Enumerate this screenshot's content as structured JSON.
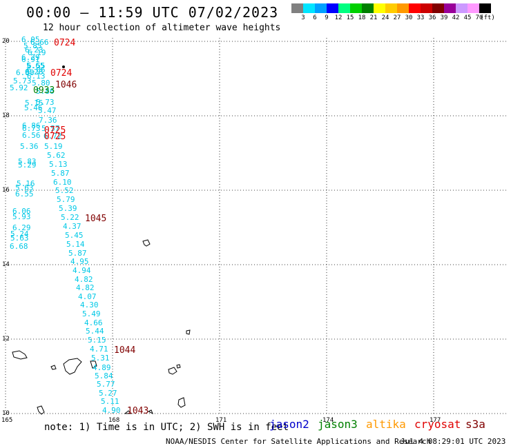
{
  "header": {
    "title": "00:00 – 11:59 UTC 07/02/2023",
    "subtitle": "12 hour collection of altimeter wave heights"
  },
  "legend": {
    "unit": "(ft)",
    "colors": [
      "#808080",
      "#00e5ff",
      "#00a0ff",
      "#0000ff",
      "#00ff80",
      "#00d000",
      "#008000",
      "#ffff00",
      "#ffcc00",
      "#ff9900",
      "#ff0000",
      "#cc0000",
      "#800000",
      "#990099",
      "#cc99ff",
      "#ff99ff",
      "#000000"
    ],
    "labels": [
      "3",
      "6",
      "9",
      "12",
      "15",
      "18",
      "21",
      "24",
      "27",
      "30",
      "33",
      "36",
      "39",
      "42",
      "45",
      "70"
    ]
  },
  "axes": {
    "x_ticks": [
      "165",
      "168",
      "171",
      "174",
      "177"
    ],
    "y_ticks": [
      "20",
      "18",
      "16",
      "14",
      "12",
      "10"
    ]
  },
  "wave_heights": [
    {
      "v": "6.05",
      "c": "#00c8e6"
    },
    {
      "v": "6.66",
      "c": "#00c8e6"
    },
    {
      "v": "5.85",
      "c": "#00c8e6"
    },
    {
      "v": "6.23",
      "c": "#00c8e6"
    },
    {
      "v": "6.19",
      "c": "#00c8e6"
    },
    {
      "v": "6.91",
      "c": "#00c8e6"
    },
    {
      "v": "6.29",
      "c": "#00c8e6"
    },
    {
      "v": "5.65",
      "c": "#00c8e6"
    },
    {
      "v": "6.55",
      "c": "#00c8e6"
    },
    {
      "v": "6.06",
      "c": "#00c8e6"
    },
    {
      "v": "6.88",
      "c": "#00c8e6"
    },
    {
      "v": "6.28",
      "c": "#00c8e6"
    },
    {
      "v": "6.13",
      "c": "#00c8e6"
    },
    {
      "v": "5.73",
      "c": "#00c8e6"
    },
    {
      "v": "5.80",
      "c": "#00c8e6"
    },
    {
      "v": "5.92",
      "c": "#00c8e6"
    },
    {
      "v": "5.86",
      "c": "#00c8e6"
    },
    {
      "v": "5.73",
      "c": "#00c8e6"
    },
    {
      "v": "5.15",
      "c": "#00c8e6"
    },
    {
      "v": "5.46",
      "c": "#00c8e6"
    },
    {
      "v": "5.47",
      "c": "#00c8e6"
    },
    {
      "v": "7.36",
      "c": "#00c8e6"
    },
    {
      "v": "6.86",
      "c": "#00c8e6"
    },
    {
      "v": "6.73",
      "c": "#00c8e6"
    },
    {
      "v": "5.57",
      "c": "#00c8e6"
    },
    {
      "v": "6.56",
      "c": "#00c8e6"
    },
    {
      "v": "6.72",
      "c": "#00c8e6"
    },
    {
      "v": "5.36",
      "c": "#00c8e6"
    },
    {
      "v": "5.19",
      "c": "#00c8e6"
    },
    {
      "v": "5.62",
      "c": "#00c8e6"
    },
    {
      "v": "5.83",
      "c": "#00c8e6"
    },
    {
      "v": "5.29",
      "c": "#00c8e6"
    },
    {
      "v": "5.13",
      "c": "#00c8e6"
    },
    {
      "v": "5.87",
      "c": "#00c8e6"
    },
    {
      "v": "5.16",
      "c": "#00c8e6"
    },
    {
      "v": "6.10",
      "c": "#00c8e6"
    },
    {
      "v": "5.63",
      "c": "#00c8e6"
    },
    {
      "v": "5.52",
      "c": "#00c8e6"
    },
    {
      "v": "6.55",
      "c": "#00c8e6"
    },
    {
      "v": "5.79",
      "c": "#00c8e6"
    },
    {
      "v": "5.39",
      "c": "#00c8e6"
    },
    {
      "v": "6.06",
      "c": "#00c8e6"
    },
    {
      "v": "5.93",
      "c": "#00c8e6"
    },
    {
      "v": "5.22",
      "c": "#00c8e6"
    },
    {
      "v": "4.37",
      "c": "#00c8e6"
    },
    {
      "v": "6.29",
      "c": "#00c8e6"
    },
    {
      "v": "5.24",
      "c": "#00c8e6"
    },
    {
      "v": "5.45",
      "c": "#00c8e6"
    },
    {
      "v": "5.63",
      "c": "#00c8e6"
    },
    {
      "v": "5.14",
      "c": "#00c8e6"
    },
    {
      "v": "6.68",
      "c": "#00c8e6"
    },
    {
      "v": "5.87",
      "c": "#00c8e6"
    },
    {
      "v": "4.95",
      "c": "#00c8e6"
    },
    {
      "v": "4.94",
      "c": "#00c8e6"
    },
    {
      "v": "4.82",
      "c": "#00c8e6"
    },
    {
      "v": "4.82",
      "c": "#00c8e6"
    },
    {
      "v": "4.07",
      "c": "#00c8e6"
    },
    {
      "v": "4.30",
      "c": "#00c8e6"
    },
    {
      "v": "5.49",
      "c": "#00c8e6"
    },
    {
      "v": "4.66",
      "c": "#00c8e6"
    },
    {
      "v": "5.44",
      "c": "#00c8e6"
    },
    {
      "v": "5.15",
      "c": "#00c8e6"
    },
    {
      "v": "4.71",
      "c": "#00c8e6"
    },
    {
      "v": "5.31",
      "c": "#00c8e6"
    },
    {
      "v": "4.89",
      "c": "#00c8e6"
    },
    {
      "v": "5.84",
      "c": "#00c8e6"
    },
    {
      "v": "5.77",
      "c": "#00c8e6"
    },
    {
      "v": "5.27",
      "c": "#00c8e6"
    },
    {
      "v": "5.11",
      "c": "#00c8e6"
    },
    {
      "v": "4.90",
      "c": "#00c8e6"
    }
  ],
  "pass_times": [
    {
      "t": "0724",
      "c": "#e00000"
    },
    {
      "t": "0724",
      "c": "#e00000"
    },
    {
      "t": "1046",
      "c": "#800000"
    },
    {
      "t": "0933",
      "c": "#008000"
    },
    {
      "t": "0725",
      "c": "#e00000"
    },
    {
      "t": "0725",
      "c": "#e00000"
    },
    {
      "t": "1045",
      "c": "#800000"
    },
    {
      "t": "1044",
      "c": "#800000"
    },
    {
      "t": "1043",
      "c": "#800000"
    }
  ],
  "footer": {
    "note": "note: 1) Time is in UTC; 2) SWH is in feet",
    "missions": [
      {
        "name": "jason2",
        "color": "#0000cc"
      },
      {
        "name": "jason3",
        "color": "#008000"
      },
      {
        "name": "altika",
        "color": "#ff9900"
      },
      {
        "name": "cryosat",
        "color": "#e00000"
      },
      {
        "name": "s3a",
        "color": "#800000"
      }
    ],
    "credit": "NOAA/NESDIS Center for Satellite Applications and Research",
    "date": "Jul  4 08:29:01 UTC 2023"
  }
}
